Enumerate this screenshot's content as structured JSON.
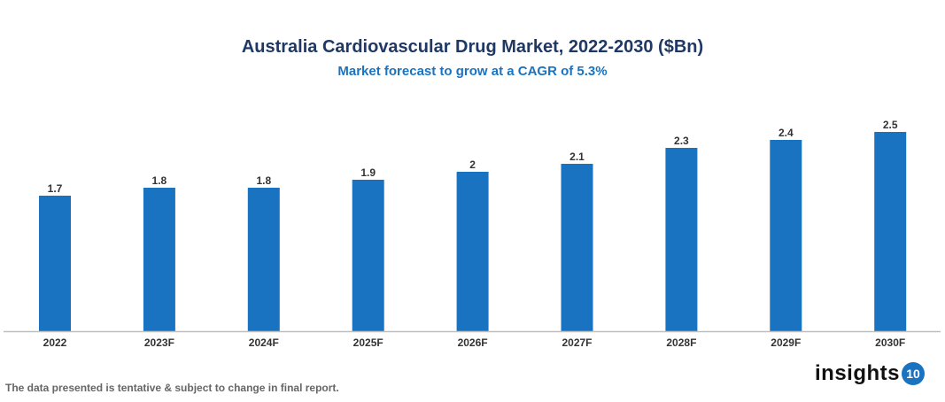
{
  "chart_data": {
    "type": "bar",
    "title": "Australia Cardiovascular Drug Market, 2022-2030 ($Bn)",
    "subtitle": "Market forecast to grow at a CAGR of 5.3%",
    "categories": [
      "2022",
      "2023F",
      "2024F",
      "2025F",
      "2026F",
      "2027F",
      "2028F",
      "2029F",
      "2030F"
    ],
    "values": [
      1.7,
      1.8,
      1.8,
      1.9,
      2,
      2.1,
      2.3,
      2.4,
      2.5
    ],
    "data_labels": [
      "1.7",
      "1.8",
      "1.8",
      "1.9",
      "2",
      "2.1",
      "2.3",
      "2.4",
      "2.5"
    ],
    "xlabel": "",
    "ylabel": "",
    "ylim": [
      0,
      2.5
    ],
    "grid": false,
    "legend": "none",
    "bar_color": "#1a73c1"
  },
  "footnote": "The data presented is tentative & subject to change in final report.",
  "logo": {
    "text": "insights",
    "badge": "10"
  }
}
